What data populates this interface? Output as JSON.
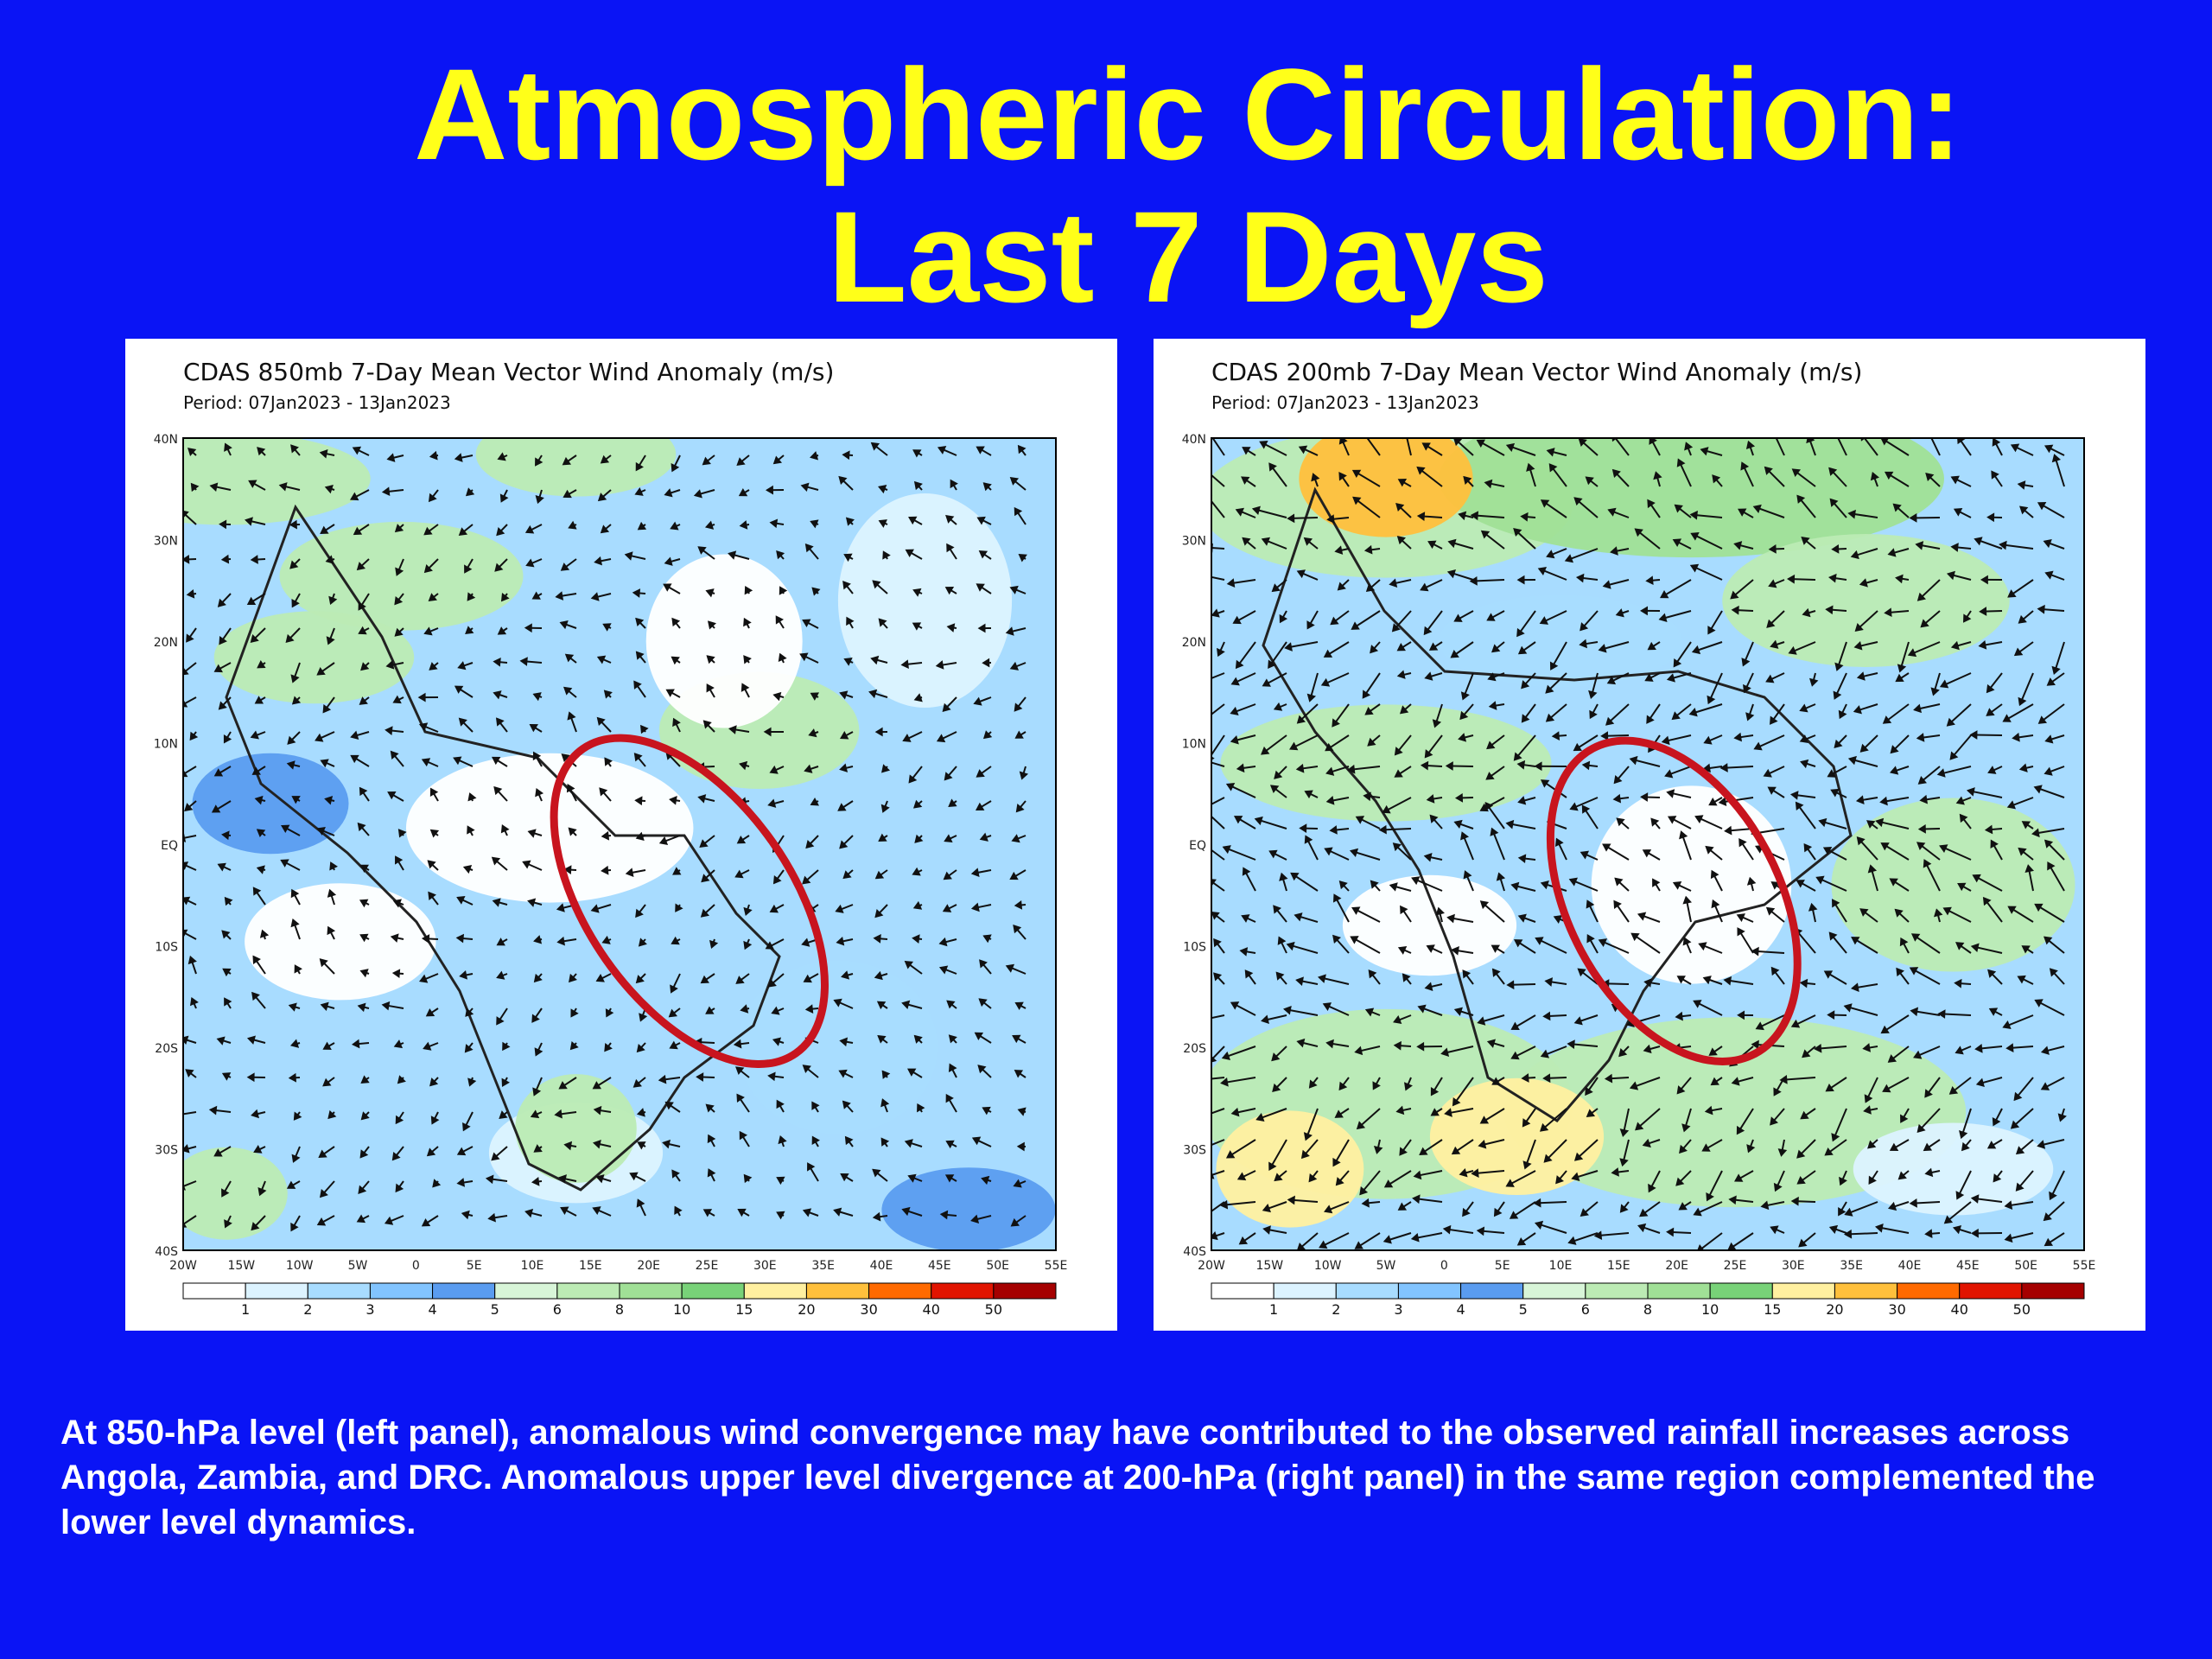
{
  "slide": {
    "title_line1": "Atmospheric Circulation:",
    "title_line2": "Last 7 Days",
    "caption": "At 850-hPa level (left  panel), anomalous wind convergence may have contributed to the observed rainfall increases across Angola, Zambia, and DRC. Anomalous upper level divergence at 200-hPa (right panel) in the same region complemented the lower level dynamics."
  },
  "colors": {
    "background": "#0a14f5",
    "title": "#ffff19",
    "caption": "#ffffff",
    "highlight_ellipse": "#c8141e"
  },
  "maps": {
    "lat_labels": [
      "40N",
      "30N",
      "20N",
      "10N",
      "EQ",
      "10S",
      "20S",
      "30S",
      "40S"
    ],
    "lon_labels": [
      "20W",
      "15W",
      "10W",
      "5W",
      "0",
      "5E",
      "10E",
      "15E",
      "20E",
      "25E",
      "30E",
      "35E",
      "40E",
      "45E",
      "50E",
      "55E"
    ],
    "colorbar_labels": [
      "1",
      "2",
      "3",
      "4",
      "5",
      "6",
      "8",
      "10",
      "15",
      "20",
      "30",
      "40",
      "50"
    ],
    "colorbar_colors": [
      "#ffffff",
      "#dcf3ff",
      "#a8dcff",
      "#82c4ff",
      "#5a9cf0",
      "#d8f5d8",
      "#bcebb4",
      "#a0e096",
      "#78d278",
      "#fff0a0",
      "#ffc03c",
      "#ff6a00",
      "#e11400",
      "#a50000"
    ],
    "left": {
      "title": "CDAS 850mb 7-Day Mean Vector Wind Anomaly (m/s)",
      "period": "Period: 07Jan2023 - 13Jan2023",
      "highlight": "Angola, Zambia, DRC convergence region"
    },
    "right": {
      "title": "CDAS 200mb 7-Day Mean Vector Wind Anomaly (m/s)",
      "period": "Period: 07Jan2023 - 13Jan2023",
      "highlight": "Angola, Zambia, DRC divergence region"
    }
  }
}
